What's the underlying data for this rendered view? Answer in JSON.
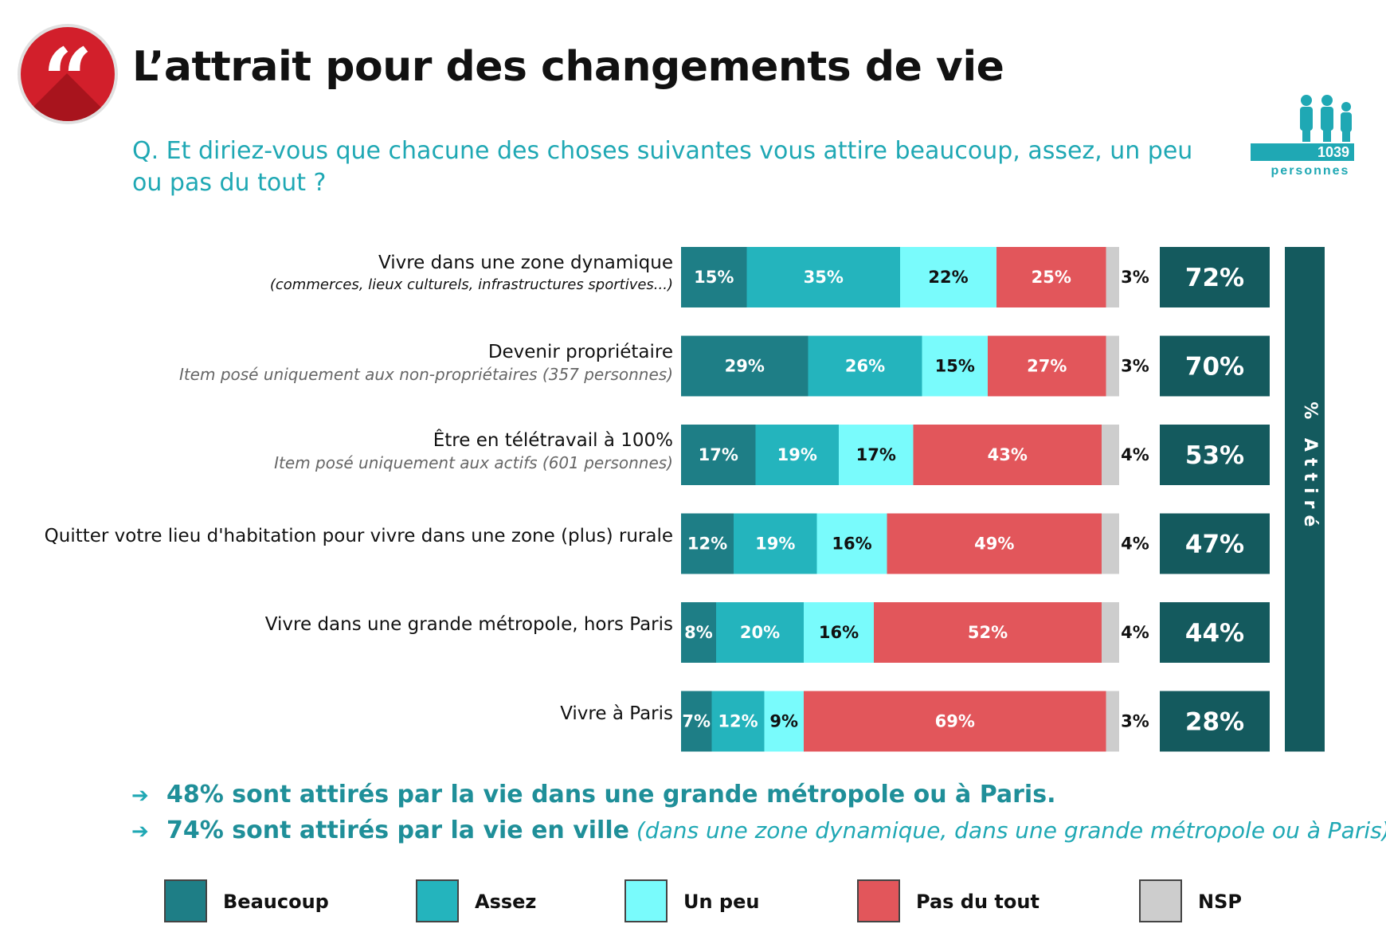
{
  "header": {
    "title": "L’attrait pour des changements de vie",
    "question": "Q. Et diriez-vous que chacune des choses suivantes vous attire beaucoup, assez, un peu ou pas du tout ?",
    "logo_icon": "quote-icon",
    "sample_count": "1039",
    "sample_label": "personnes",
    "sample_icon": "people-icon"
  },
  "chart_data": {
    "type": "bar",
    "orientation": "horizontal-stacked-100",
    "series_names": [
      "Beaucoup",
      "Assez",
      "Un peu",
      "Pas du tout",
      "NSP"
    ],
    "colors": [
      "#1e7e86",
      "#24b4bd",
      "#79fbfc",
      "#e2565b",
      "#cdcdcd"
    ],
    "total_color": "#145a5e",
    "total_axis_title": "% Attiré",
    "rows": [
      {
        "label": "Vivre dans une zone dynamique",
        "note": "(commerces, lieux culturels, infrastructures sportives...)",
        "note_style": "black",
        "values": [
          15,
          35,
          22,
          25,
          3
        ],
        "total": "72%"
      },
      {
        "label": "Devenir propriétaire",
        "note": "Item posé uniquement aux non-propriétaires (357 personnes)",
        "note_style": "grey",
        "values": [
          29,
          26,
          15,
          27,
          3
        ],
        "total": "70%"
      },
      {
        "label": "Être en télétravail à 100%",
        "note": "Item posé uniquement aux actifs (601 personnes)",
        "note_style": "grey",
        "values": [
          17,
          19,
          17,
          43,
          4
        ],
        "total": "53%"
      },
      {
        "label": "Quitter votre lieu d'habitation pour vivre dans une zone (plus) rurale",
        "note": "",
        "note_style": "grey",
        "values": [
          12,
          19,
          16,
          49,
          4
        ],
        "total": "47%"
      },
      {
        "label": "Vivre dans une grande métropole, hors Paris",
        "note": "",
        "note_style": "grey",
        "values": [
          8,
          20,
          16,
          52,
          4
        ],
        "total": "44%"
      },
      {
        "label": "Vivre à Paris",
        "note": "",
        "note_style": "grey",
        "values": [
          7,
          12,
          9,
          69,
          3
        ],
        "total": "28%"
      }
    ]
  },
  "conclusions": [
    {
      "bold": "48% sont attirés par la vie dans une grande métropole ou à Paris.",
      "normal": ""
    },
    {
      "bold": "74% sont attirés par la vie en ville",
      "normal": " (dans une zone dynamique, dans une grande métropole ou à Paris)"
    }
  ],
  "legend": [
    {
      "label": "Beaucoup",
      "color": "#1e7e86"
    },
    {
      "label": "Assez",
      "color": "#24b4bd"
    },
    {
      "label": "Un peu",
      "color": "#79fbfc"
    },
    {
      "label": "Pas du tout",
      "color": "#e2565b"
    },
    {
      "label": "NSP",
      "color": "#cdcdcd"
    }
  ]
}
